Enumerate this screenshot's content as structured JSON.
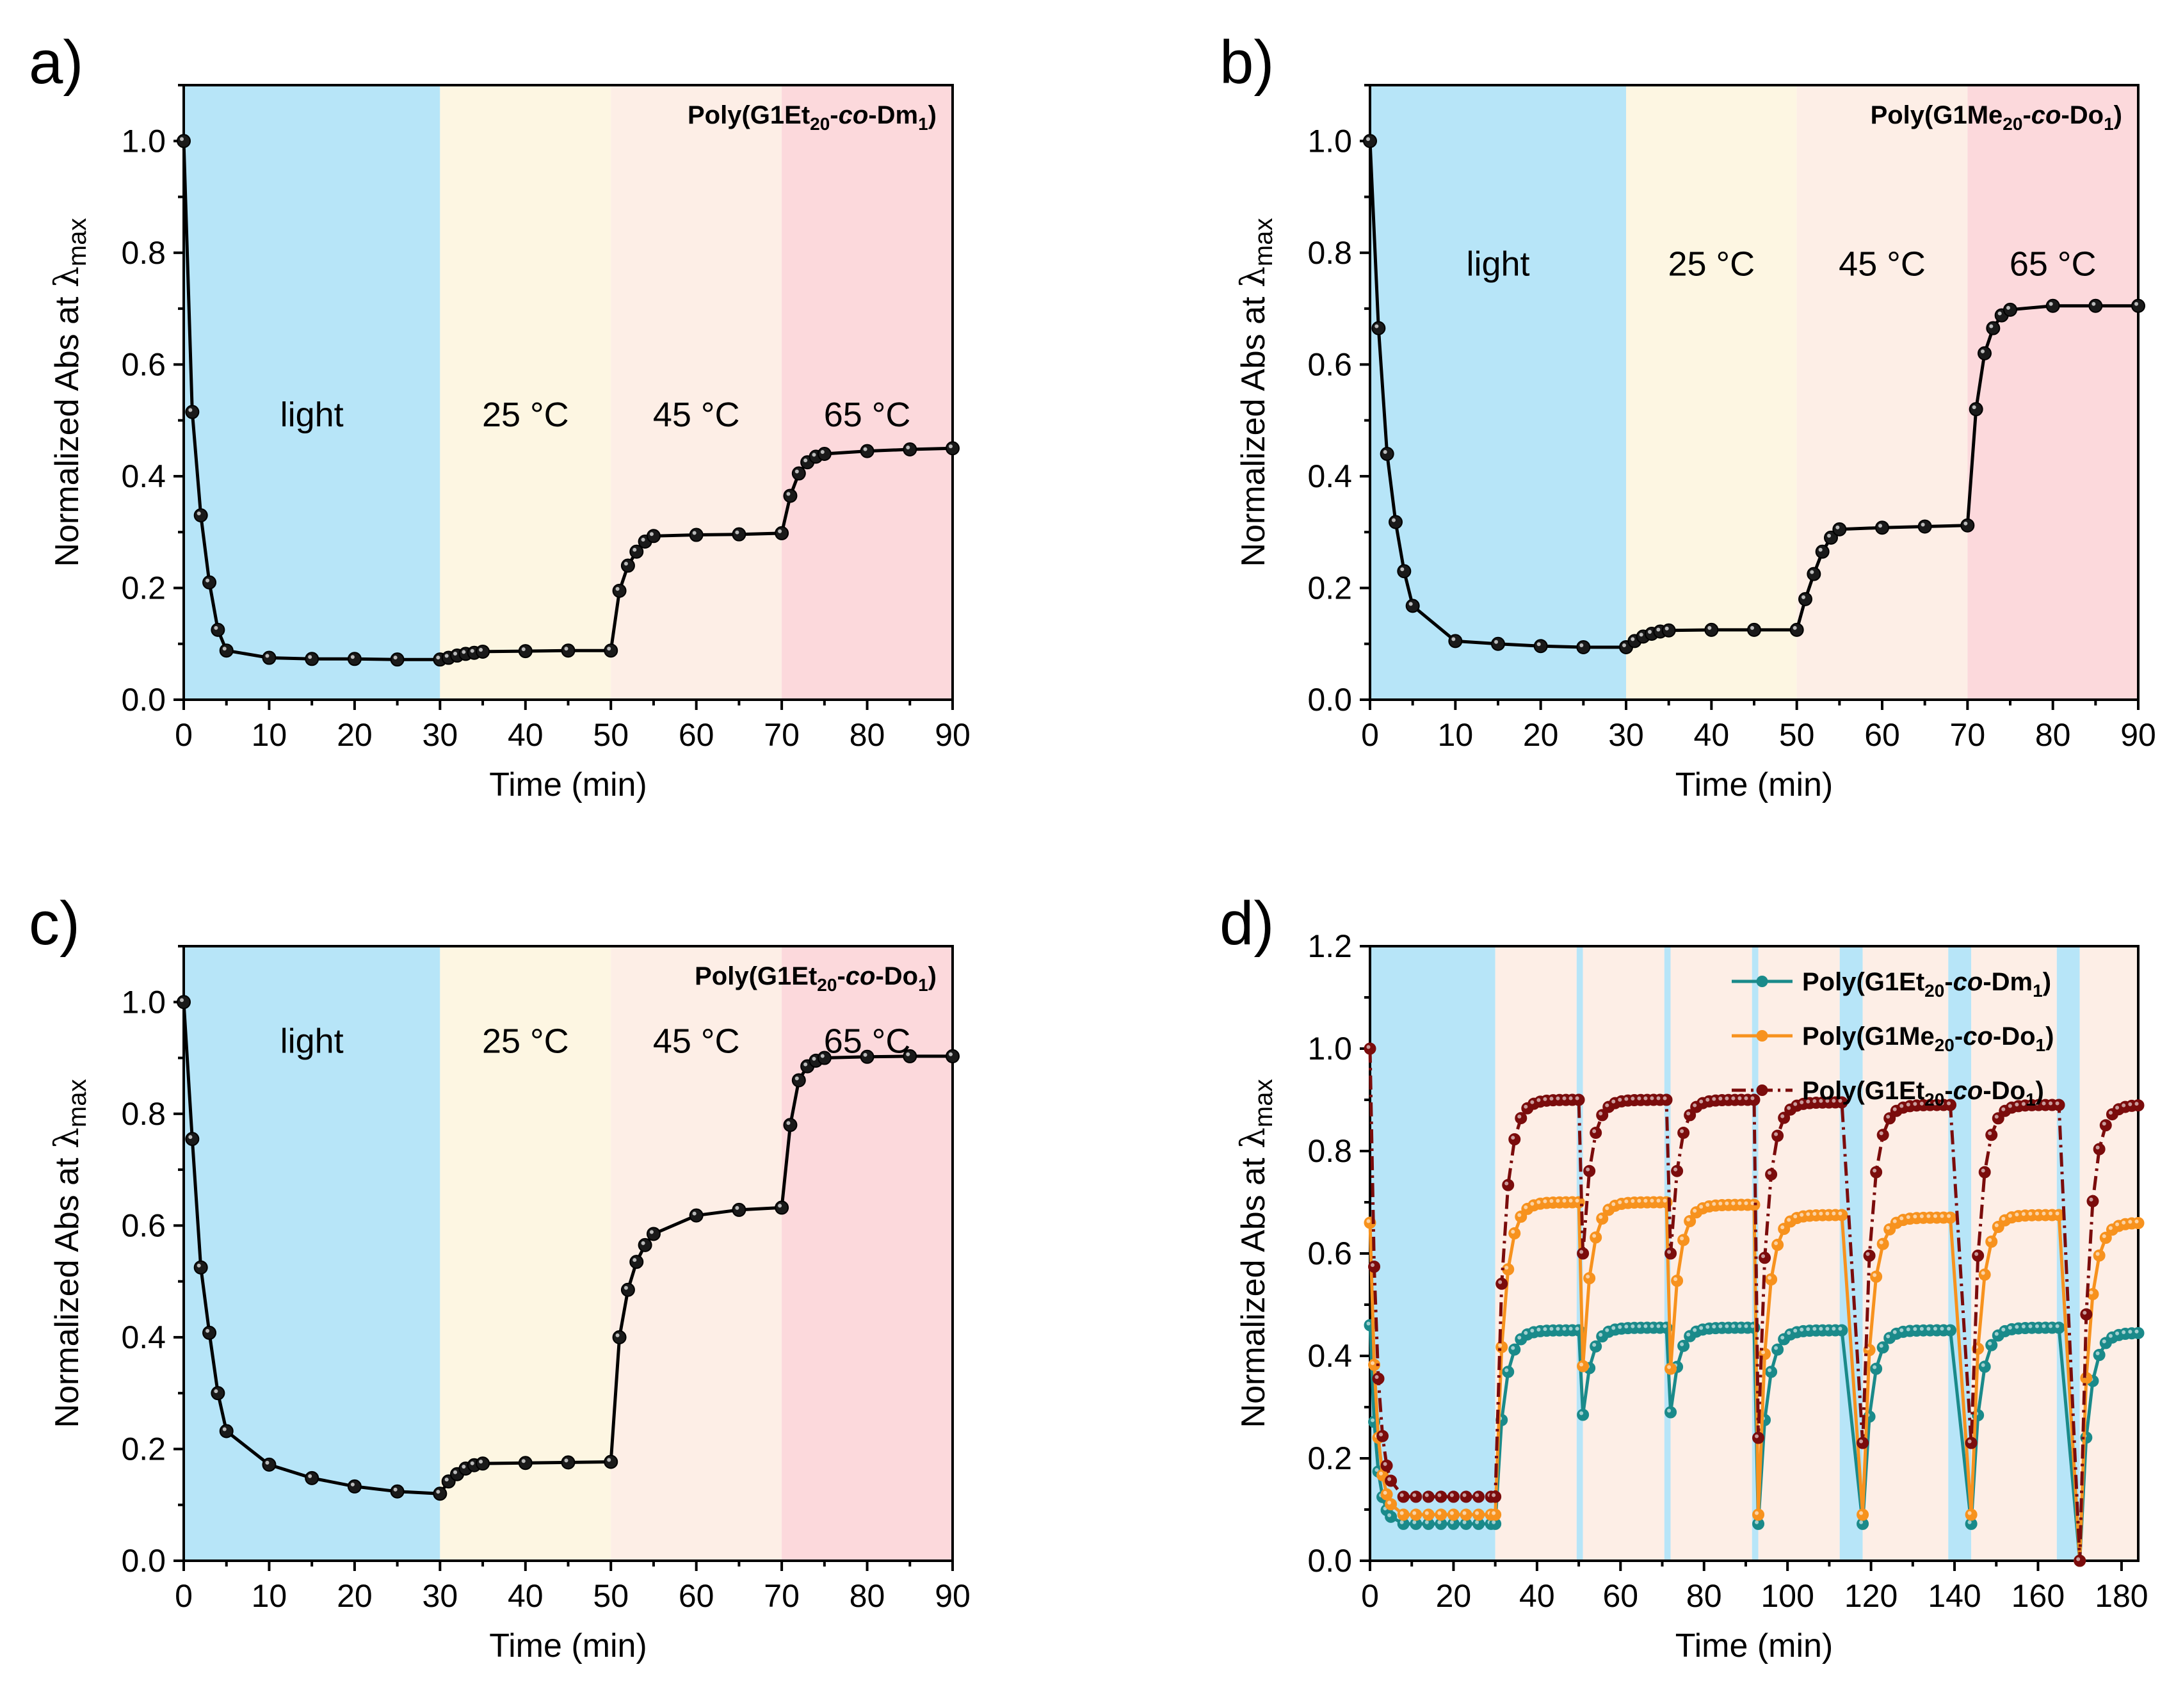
{
  "figure": {
    "colors": {
      "light": "#b7e5f8",
      "t25": "#fdf6e2",
      "t45": "#fdeee6",
      "t65": "#fcd9dc",
      "line": "#000000",
      "series_teal": "#1a8a8a",
      "series_orange": "#f7921e",
      "series_darkred": "#7b0c0c"
    }
  },
  "chart_data": [
    {
      "panel": "a)",
      "type": "line",
      "legend": {
        "pre": "Poly(G1Et",
        "sub1": "20",
        "mid": "-",
        "italic": "co",
        "post": "-Dm",
        "sub2": "1",
        "end": ")"
      },
      "xlabel": "Time (min)",
      "ylabel": "Normalized Abs at",
      "ylabel_symbol": "λ",
      "ylabel_sub": "max",
      "xlim": [
        0,
        90
      ],
      "ylim": [
        0,
        1.1
      ],
      "xticks": [
        "0",
        "10",
        "20",
        "30",
        "40",
        "50",
        "60",
        "70",
        "80",
        "90"
      ],
      "yticks": [
        "0.0",
        "0.2",
        "0.4",
        "0.6",
        "0.8",
        "1.0"
      ],
      "regions": [
        {
          "label": "light",
          "x0": 0,
          "x1": 30,
          "color": "light",
          "label_y": 0.51
        },
        {
          "label": "25 °C",
          "x0": 30,
          "x1": 50,
          "color": "t25",
          "label_y": 0.51
        },
        {
          "label": "45 °C",
          "x0": 50,
          "x1": 70,
          "color": "t45",
          "label_y": 0.51
        },
        {
          "label": "65 °C",
          "x0": 70,
          "x1": 90,
          "color": "t65",
          "label_y": 0.51
        }
      ],
      "x": [
        0,
        1,
        2,
        3,
        4,
        5,
        10,
        15,
        20,
        25,
        30,
        31,
        32,
        33,
        34,
        35,
        40,
        45,
        50,
        51,
        52,
        53,
        54,
        55,
        60,
        65,
        70,
        71,
        72,
        73,
        74,
        75,
        80,
        85,
        90
      ],
      "y": [
        1.0,
        0.515,
        0.33,
        0.21,
        0.125,
        0.088,
        0.075,
        0.073,
        0.073,
        0.072,
        0.072,
        0.075,
        0.079,
        0.082,
        0.084,
        0.086,
        0.087,
        0.088,
        0.088,
        0.195,
        0.24,
        0.265,
        0.283,
        0.293,
        0.295,
        0.296,
        0.298,
        0.365,
        0.405,
        0.425,
        0.435,
        0.44,
        0.445,
        0.448,
        0.45
      ]
    },
    {
      "panel": "b)",
      "type": "line",
      "legend": {
        "pre": "Poly(G1Me",
        "sub1": "20",
        "mid": "-",
        "italic": "co",
        "post": "-Do",
        "sub2": "1",
        "end": ")"
      },
      "xlabel": "Time (min)",
      "ylabel": "Normalized Abs at",
      "ylabel_symbol": "λ",
      "ylabel_sub": "max",
      "xlim": [
        0,
        90
      ],
      "ylim": [
        0,
        1.1
      ],
      "xticks": [
        "0",
        "10",
        "20",
        "30",
        "40",
        "50",
        "60",
        "70",
        "80",
        "90"
      ],
      "yticks": [
        "0.0",
        "0.2",
        "0.4",
        "0.6",
        "0.8",
        "1.0"
      ],
      "regions": [
        {
          "label": "light",
          "x0": 0,
          "x1": 30,
          "color": "light",
          "label_y": 0.78
        },
        {
          "label": "25 °C",
          "x0": 30,
          "x1": 50,
          "color": "t25",
          "label_y": 0.78
        },
        {
          "label": "45 °C",
          "x0": 50,
          "x1": 70,
          "color": "t45",
          "label_y": 0.78
        },
        {
          "label": "65 °C",
          "x0": 70,
          "x1": 90,
          "color": "t65",
          "label_y": 0.78
        }
      ],
      "x": [
        0,
        1,
        2,
        3,
        4,
        5,
        10,
        15,
        20,
        25,
        30,
        31,
        32,
        33,
        34,
        35,
        40,
        45,
        50,
        51,
        52,
        53,
        54,
        55,
        60,
        65,
        70,
        71,
        72,
        73,
        74,
        75,
        80,
        85,
        90
      ],
      "y": [
        1.0,
        0.665,
        0.44,
        0.318,
        0.23,
        0.168,
        0.105,
        0.1,
        0.096,
        0.094,
        0.094,
        0.105,
        0.113,
        0.118,
        0.122,
        0.124,
        0.125,
        0.125,
        0.125,
        0.18,
        0.225,
        0.265,
        0.29,
        0.305,
        0.308,
        0.31,
        0.312,
        0.52,
        0.62,
        0.665,
        0.688,
        0.698,
        0.705,
        0.705,
        0.705
      ]
    },
    {
      "panel": "c)",
      "type": "line",
      "legend": {
        "pre": "Poly(G1Et",
        "sub1": "20",
        "mid": "-",
        "italic": "co",
        "post": "-Do",
        "sub2": "1",
        "end": ")"
      },
      "xlabel": "Time (min)",
      "ylabel": "Normalized Abs at",
      "ylabel_symbol": "λ",
      "ylabel_sub": "max",
      "xlim": [
        0,
        90
      ],
      "ylim": [
        0,
        1.1
      ],
      "xticks": [
        "0",
        "10",
        "20",
        "30",
        "40",
        "50",
        "60",
        "70",
        "80",
        "90"
      ],
      "yticks": [
        "0.0",
        "0.2",
        "0.4",
        "0.6",
        "0.8",
        "1.0"
      ],
      "regions": [
        {
          "label": "light",
          "x0": 0,
          "x1": 30,
          "color": "light",
          "label_y": 0.93
        },
        {
          "label": "25 °C",
          "x0": 30,
          "x1": 50,
          "color": "t25",
          "label_y": 0.93
        },
        {
          "label": "45 °C",
          "x0": 50,
          "x1": 70,
          "color": "t45",
          "label_y": 0.93
        },
        {
          "label": "65 °C",
          "x0": 70,
          "x1": 90,
          "color": "t65",
          "label_y": 0.93
        }
      ],
      "x": [
        0,
        1,
        2,
        3,
        4,
        5,
        10,
        15,
        20,
        25,
        30,
        31,
        32,
        33,
        34,
        35,
        40,
        45,
        50,
        51,
        52,
        53,
        54,
        55,
        60,
        65,
        70,
        71,
        72,
        73,
        74,
        75,
        80,
        85,
        90
      ],
      "y": [
        1.0,
        0.755,
        0.525,
        0.408,
        0.3,
        0.232,
        0.172,
        0.148,
        0.133,
        0.124,
        0.12,
        0.142,
        0.155,
        0.165,
        0.171,
        0.174,
        0.175,
        0.176,
        0.177,
        0.4,
        0.485,
        0.535,
        0.565,
        0.585,
        0.618,
        0.628,
        0.632,
        0.78,
        0.86,
        0.885,
        0.895,
        0.9,
        0.902,
        0.903,
        0.903
      ]
    },
    {
      "panel": "d)",
      "type": "line",
      "xlabel": "Time (min)",
      "ylabel": "Normalized Abs at",
      "ylabel_symbol": "λ",
      "ylabel_sub": "max",
      "xlim": [
        0,
        184
      ],
      "ylim": [
        0,
        1.2
      ],
      "xticks": [
        "0",
        "20",
        "40",
        "60",
        "80",
        "100",
        "120",
        "140",
        "160",
        "180"
      ],
      "yticks": [
        "0.0",
        "0.2",
        "0.4",
        "0.6",
        "0.8",
        "1.0",
        "1.2"
      ],
      "regions": [
        {
          "x0": 0,
          "x1": 30,
          "color": "light"
        },
        {
          "x0": 30,
          "x1": 49.5,
          "color": "t45"
        },
        {
          "x0": 49.5,
          "x1": 51,
          "color": "light"
        },
        {
          "x0": 51,
          "x1": 70.5,
          "color": "t45"
        },
        {
          "x0": 70.5,
          "x1": 72,
          "color": "light"
        },
        {
          "x0": 72,
          "x1": 91.5,
          "color": "t45"
        },
        {
          "x0": 91.5,
          "x1": 93,
          "color": "light"
        },
        {
          "x0": 93,
          "x1": 112.5,
          "color": "t45"
        },
        {
          "x0": 112.5,
          "x1": 118,
          "color": "light"
        },
        {
          "x0": 118,
          "x1": 138.5,
          "color": "t45"
        },
        {
          "x0": 138.5,
          "x1": 144,
          "color": "light"
        },
        {
          "x0": 144,
          "x1": 164.5,
          "color": "t45"
        },
        {
          "x0": 164.5,
          "x1": 170,
          "color": "light"
        },
        {
          "x0": 170,
          "x1": 184,
          "color": "t45"
        }
      ],
      "series": [
        {
          "name": "Poly(G1Et20-co-Dm1)",
          "legend": {
            "pre": "Poly(G1Et",
            "sub1": "20",
            "mid": "-",
            "italic": "co",
            "post": "-Dm",
            "sub2": "1",
            "end": ")"
          },
          "color": "series_teal",
          "dashed": false,
          "t0": 0.46,
          "tmin": 0.072,
          "cycles": [
            {
              "s": 30,
              "e": 50,
              "p": 0.45,
              "m": 0.29
            },
            {
              "s": 51,
              "e": 71,
              "p": 0.455,
              "m": 0.285
            },
            {
              "s": 72,
              "e": 92,
              "p": 0.455,
              "m": 0.29
            },
            {
              "s": 93,
              "e": 113,
              "p": 0.45,
              "m": 0.072
            },
            {
              "s": 118,
              "e": 139,
              "p": 0.45,
              "m": 0.072
            },
            {
              "s": 144,
              "e": 165,
              "p": 0.455,
              "m": 0.072
            },
            {
              "s": 170,
              "e": 184,
              "p": 0.445,
              "m": 0
            }
          ]
        },
        {
          "name": "Poly(G1Me20-co-Do1)",
          "legend": {
            "pre": "Poly(G1Me",
            "sub1": "20",
            "mid": "-",
            "italic": "co",
            "post": "-Do",
            "sub2": "1",
            "end": ")"
          },
          "color": "series_orange",
          "dashed": false,
          "t0": 0.66,
          "tmin": 0.09,
          "cycles": [
            {
              "s": 30,
              "e": 50,
              "p": 0.7,
              "m": 0.37
            },
            {
              "s": 51,
              "e": 71,
              "p": 0.7,
              "m": 0.38
            },
            {
              "s": 72,
              "e": 92,
              "p": 0.695,
              "m": 0.375
            },
            {
              "s": 93,
              "e": 113,
              "p": 0.675,
              "m": 0.09
            },
            {
              "s": 118,
              "e": 139,
              "p": 0.67,
              "m": 0.09
            },
            {
              "s": 144,
              "e": 165,
              "p": 0.675,
              "m": 0.09
            },
            {
              "s": 170,
              "e": 184,
              "p": 0.66,
              "m": 0
            }
          ]
        },
        {
          "name": "Poly(G1Et20-co-Do1)",
          "legend": {
            "pre": "Poly(G1Et",
            "sub1": "20",
            "mid": "-",
            "italic": "co",
            "post": "-Do",
            "sub2": "1",
            "end": ")"
          },
          "color": "series_darkred",
          "dashed": true,
          "t0": 1.0,
          "tmin": 0.125,
          "cycles": [
            {
              "s": 30,
              "e": 50,
              "p": 0.9,
              "m": 0.61
            },
            {
              "s": 51,
              "e": 71,
              "p": 0.9,
              "m": 0.6
            },
            {
              "s": 72,
              "e": 92,
              "p": 0.9,
              "m": 0.6
            },
            {
              "s": 93,
              "e": 113,
              "p": 0.895,
              "m": 0.24
            },
            {
              "s": 118,
              "e": 139,
              "p": 0.89,
              "m": 0.23
            },
            {
              "s": 144,
              "e": 165,
              "p": 0.89,
              "m": 0.23
            },
            {
              "s": 170,
              "e": 184,
              "p": 0.89,
              "m": 0
            }
          ]
        }
      ]
    }
  ]
}
